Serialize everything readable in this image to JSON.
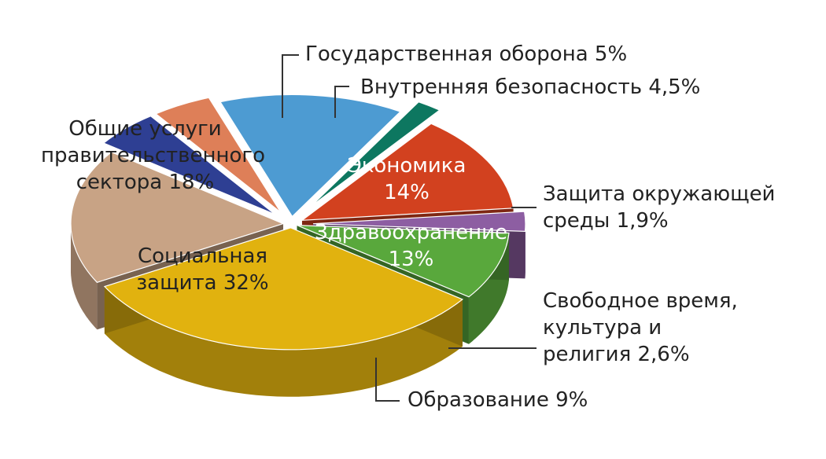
{
  "chart_data": {
    "type": "pie",
    "style": "3d-exploded",
    "slices": [
      {
        "label": "Государственная оборона 5%",
        "value": 5,
        "color": "#2e3f93"
      },
      {
        "label": "Внутренняя безопасность 4,5%",
        "value": 4.5,
        "color": "#de7f58"
      },
      {
        "label": "Экономика\n14%",
        "value": 14,
        "color": "#4d9bd2"
      },
      {
        "label": "Защита окружающей\nсреды 1,9%",
        "value": 1.9,
        "color": "#0d7760"
      },
      {
        "label": "Здравоохранение\n13%",
        "value": 13,
        "color": "#d2411f"
      },
      {
        "label": "Свободное время,\nкультура и\nрелигия 2,6%",
        "value": 2.6,
        "color": "#8d5ea2"
      },
      {
        "label": "Образование 9%",
        "value": 9,
        "color": "#59a83c"
      },
      {
        "label": "Социальная\nзащита 32%",
        "value": 32,
        "color": "#e1b20f"
      },
      {
        "label": "Общие услуги\nправительственного\nсектора 18%",
        "value": 18,
        "color": "#c8a385"
      }
    ]
  }
}
